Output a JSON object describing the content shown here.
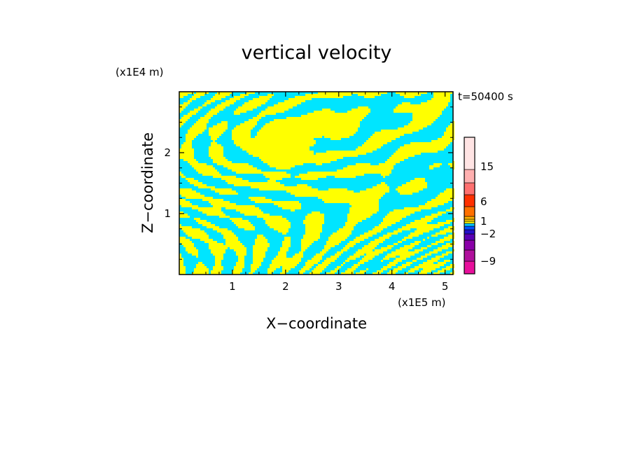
{
  "chart_data": {
    "type": "heatmap",
    "title": "vertical velocity",
    "xlabel": "X−coordinate",
    "ylabel": "Z−coordinate",
    "x_unit": "(x1E5 m)",
    "y_unit": "(x1E4 m)",
    "time_label": "t=50400 s",
    "xlim": [
      0,
      5.15
    ],
    "ylim": [
      0,
      3.0
    ],
    "x_ticks": [
      "1",
      "2",
      "3",
      "4",
      "5"
    ],
    "y_ticks": [
      "1",
      "2"
    ],
    "field_colors": {
      "positive": "#ffff00",
      "negative": "#00e5ff",
      "contour_line": "#555555"
    },
    "colorbar": {
      "levels": [
        {
          "color": "#e8109c"
        },
        {
          "color": "#b0109c"
        },
        {
          "color": "#8a00a8"
        },
        {
          "color": "#5a00b4"
        },
        {
          "color": "#2410c8"
        },
        {
          "color": "#0050ff"
        },
        {
          "color": "#00c8ff"
        },
        {
          "color": "#ffff00"
        },
        {
          "color": "#ffd000"
        },
        {
          "color": "#ffb000"
        },
        {
          "color": "#ff7000"
        },
        {
          "color": "#ff3000"
        },
        {
          "color": "#ff7070"
        },
        {
          "color": "#ffb0b0"
        },
        {
          "color": "#ffe4e4"
        }
      ],
      "labels": [
        {
          "text": "−9",
          "value": -9
        },
        {
          "text": "−2",
          "value": -2
        },
        {
          "text": "1",
          "value": 1
        },
        {
          "text": "6",
          "value": 6
        },
        {
          "text": "15",
          "value": 15
        }
      ]
    }
  }
}
